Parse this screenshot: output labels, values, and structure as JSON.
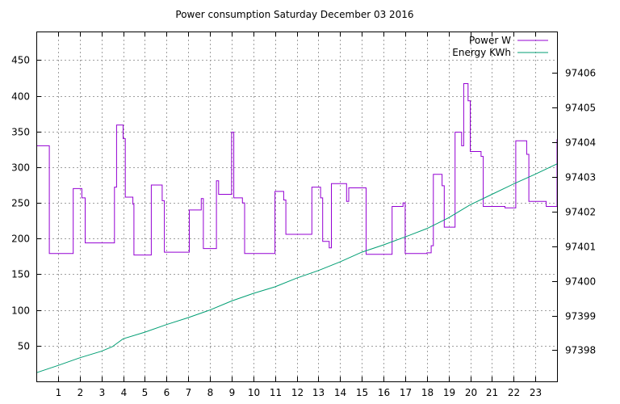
{
  "chart_data": {
    "type": "line",
    "title": "Power consumption Saturday December 03 2016",
    "grid": true,
    "legend_position": "top-right",
    "x_axis": {
      "range": [
        0,
        24
      ],
      "ticks": [
        1,
        2,
        3,
        4,
        5,
        6,
        7,
        8,
        9,
        10,
        11,
        12,
        13,
        14,
        15,
        16,
        17,
        18,
        19,
        20,
        21,
        22,
        23
      ],
      "tick_labels": [
        "1",
        "2",
        "3",
        "4",
        "5",
        "6",
        "7",
        "8",
        "9",
        "10",
        "11",
        "12",
        "13",
        "14",
        "15",
        "16",
        "17",
        "18",
        "19",
        "20",
        "21",
        "22",
        "23"
      ]
    },
    "y_axis_left": {
      "range": [
        0,
        490
      ],
      "ticks": [
        50,
        100,
        150,
        200,
        250,
        300,
        350,
        400,
        450
      ],
      "tick_labels": [
        "50",
        "100",
        "150",
        "200",
        "250",
        "300",
        "350",
        "400",
        "450"
      ]
    },
    "y_axis_right": {
      "range": [
        97397.1,
        97407.2
      ],
      "ticks": [
        97398,
        97399,
        97400,
        97401,
        97402,
        97403,
        97404,
        97405,
        97406
      ],
      "tick_labels": [
        "97398",
        "97399",
        "97400",
        "97401",
        "97402",
        "97403",
        "97404",
        "97405",
        "97406"
      ]
    },
    "series": [
      {
        "name": "Power W",
        "color": "#9400d3",
        "axis": "left",
        "style": "steps",
        "x": [
          0,
          0.5,
          0.6,
          1.6,
          1.7,
          2.1,
          2.25,
          3.5,
          3.6,
          3.7,
          4.0,
          4.1,
          4.45,
          4.5,
          5.2,
          5.3,
          5.8,
          5.9,
          7.0,
          7.05,
          7.6,
          7.7,
          8.2,
          8.3,
          8.4,
          8.9,
          9.0,
          9.1,
          9.5,
          9.6,
          10.9,
          11.0,
          11.4,
          11.5,
          12.65,
          12.7,
          13.1,
          13.2,
          13.5,
          13.6,
          14.3,
          14.4,
          15.1,
          15.2,
          16.35,
          16.4,
          16.9,
          17.0,
          17.9,
          18.0,
          18.2,
          18.3,
          18.7,
          18.8,
          19.2,
          19.3,
          19.6,
          19.7,
          19.9,
          20.0,
          20.1,
          20.5,
          20.6,
          21.5,
          21.6,
          22.0,
          22.1,
          22.6,
          22.7,
          23.4,
          23.5,
          23.9,
          24.0
        ],
        "values": [
          330,
          330,
          179,
          179,
          270,
          257,
          194,
          194,
          272,
          359,
          340,
          258,
          248,
          177,
          177,
          275,
          253,
          181,
          181,
          240,
          256,
          186,
          186,
          281,
          262,
          262,
          349,
          257,
          250,
          179,
          179,
          266,
          254,
          206,
          206,
          272,
          257,
          196,
          187,
          277,
          252,
          271,
          271,
          178,
          178,
          245,
          250,
          179,
          179,
          180,
          190,
          290,
          274,
          216,
          216,
          349,
          330,
          417,
          393,
          322,
          322,
          315,
          245,
          245,
          243,
          243,
          337,
          318,
          252,
          252,
          245,
          245,
          339
        ]
      },
      {
        "name": "Energy KWh",
        "color": "#009e73",
        "axis": "right",
        "style": "line",
        "x": [
          0,
          1,
          2,
          3,
          3.5,
          4,
          5,
          6,
          7,
          8,
          9,
          10,
          11,
          12,
          13,
          14,
          15,
          16,
          17,
          18,
          19,
          20,
          21,
          22,
          23,
          24
        ],
        "values": [
          97397.35,
          97397.56,
          97397.78,
          97397.97,
          97398.1,
          97398.33,
          97398.52,
          97398.74,
          97398.94,
          97399.16,
          97399.42,
          97399.64,
          97399.83,
          97400.08,
          97400.3,
          97400.55,
          97400.83,
          97401.04,
          97401.27,
          97401.51,
          97401.82,
          97402.2,
          97402.5,
          97402.8,
          97403.08,
          97403.38
        ]
      }
    ]
  }
}
